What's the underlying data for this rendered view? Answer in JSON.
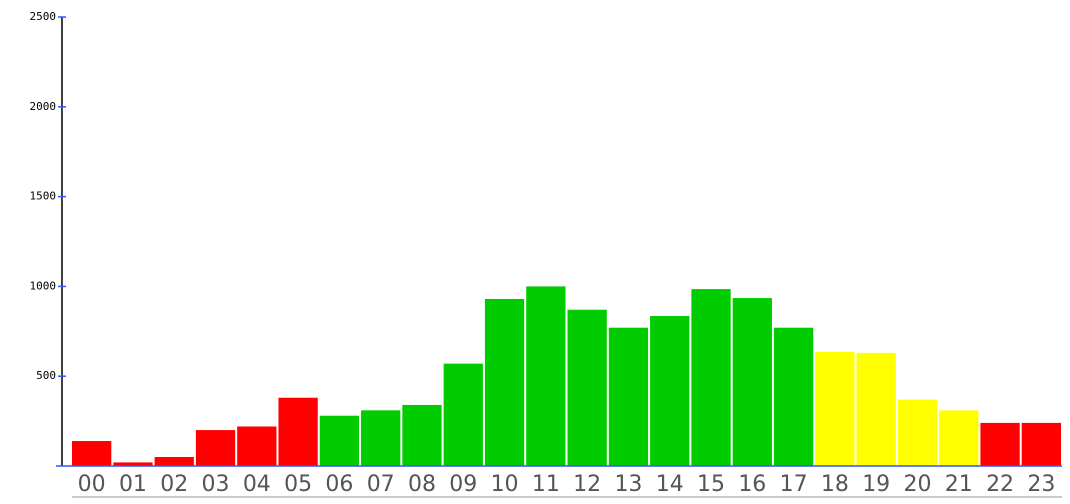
{
  "chart_data": {
    "type": "bar",
    "categories": [
      "00",
      "01",
      "02",
      "03",
      "04",
      "05",
      "06",
      "07",
      "08",
      "09",
      "10",
      "11",
      "12",
      "13",
      "14",
      "15",
      "16",
      "17",
      "18",
      "19",
      "20",
      "21",
      "22",
      "23"
    ],
    "values": [
      139,
      20,
      50,
      200,
      220,
      380,
      280,
      310,
      340,
      570,
      930,
      1000,
      870,
      770,
      835,
      985,
      935,
      770,
      635,
      630,
      370,
      310,
      240,
      240
    ],
    "colors": [
      "#ff0000",
      "#ff0000",
      "#ff0000",
      "#ff0000",
      "#ff0000",
      "#ff0000",
      "#00cc00",
      "#00cc00",
      "#00cc00",
      "#00cc00",
      "#00cc00",
      "#00cc00",
      "#00cc00",
      "#00cc00",
      "#00cc00",
      "#00cc00",
      "#00cc00",
      "#00cc00",
      "#ffff00",
      "#ffff00",
      "#ffff00",
      "#ffff00",
      "#ff0000",
      "#ff0000"
    ],
    "ylim": [
      0,
      2500
    ],
    "yticks": [
      500,
      1000,
      1500,
      2000,
      2500
    ]
  }
}
